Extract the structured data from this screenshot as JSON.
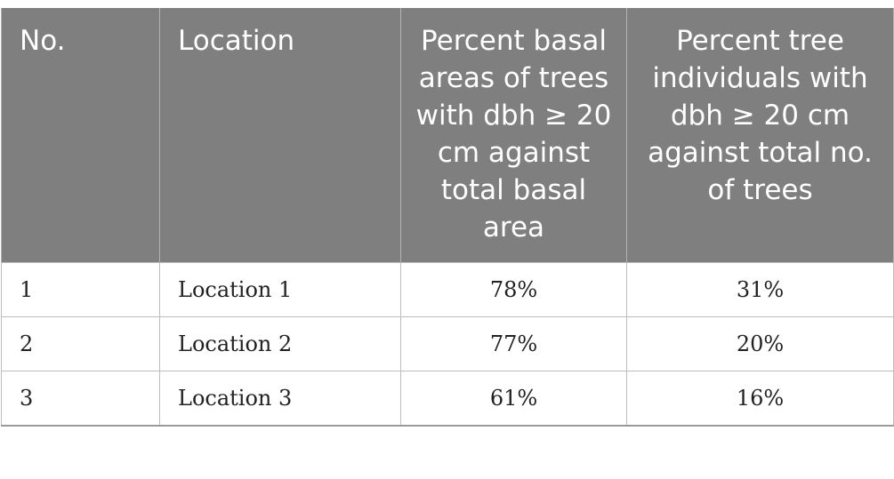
{
  "table": {
    "headers": [
      "No.",
      "Location",
      "Percent basal areas of trees with dbh ≥ 20 cm against total basal area",
      "Percent tree individuals with dbh ≥ 20 cm against total no. of trees"
    ],
    "rows": [
      [
        "1",
        "Location 1",
        "78%",
        "31%"
      ],
      [
        "2",
        "Location 2",
        "77%",
        "20%"
      ],
      [
        "3",
        "Location 3",
        "61%",
        "16%"
      ]
    ]
  }
}
